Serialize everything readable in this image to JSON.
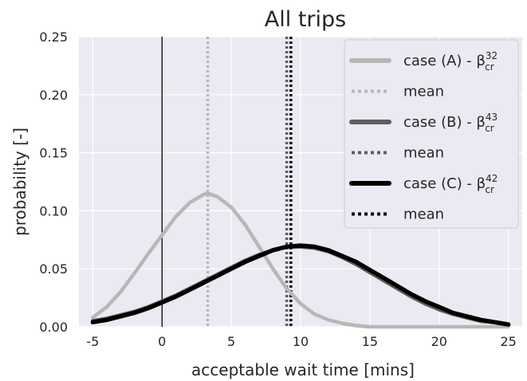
{
  "chart_data": {
    "type": "line",
    "title": "All trips",
    "xlabel": "acceptable wait time [mins]",
    "ylabel": "probability [-]",
    "xlim": [
      -6,
      26
    ],
    "ylim": [
      0,
      0.25
    ],
    "xticks": [
      "-5",
      "0",
      "5",
      "10",
      "15",
      "20",
      "25"
    ],
    "yticks": [
      "0.00",
      "0.05",
      "0.10",
      "0.15",
      "0.20",
      "0.25"
    ],
    "grid": true,
    "legend_position": "top-right",
    "reference_line_x": 0,
    "series": [
      {
        "name": "case (A) - β",
        "sup": "32",
        "sub": "cr",
        "color": "#b7b7b7",
        "mean": 3.3,
        "x": [
          -5,
          -4,
          -3,
          -2,
          -1,
          0,
          1,
          2,
          3,
          3.3,
          4,
          5,
          6,
          7,
          8,
          9,
          10,
          11,
          12,
          13,
          14,
          15,
          16,
          18,
          20,
          22,
          25
        ],
        "y": [
          0.008,
          0.017,
          0.03,
          0.046,
          0.063,
          0.079,
          0.095,
          0.107,
          0.114,
          0.115,
          0.112,
          0.103,
          0.088,
          0.069,
          0.05,
          0.033,
          0.02,
          0.011,
          0.006,
          0.003,
          0.001,
          0.0,
          0.0,
          0.0,
          0.0,
          0.0,
          0.0
        ]
      },
      {
        "name": "case (B) - β",
        "sup": "43",
        "sub": "cr",
        "color": "#5e5e5e",
        "mean": 9.0,
        "x": [
          -5,
          -4,
          -3,
          -2,
          -1,
          0,
          1,
          2,
          3,
          4,
          5,
          6,
          7,
          8,
          9,
          10,
          11,
          12,
          13,
          14,
          15,
          16,
          17,
          18,
          19,
          20,
          21,
          22,
          23,
          24,
          25
        ],
        "y": [
          0.005,
          0.007,
          0.01,
          0.013,
          0.017,
          0.022,
          0.027,
          0.033,
          0.039,
          0.045,
          0.051,
          0.057,
          0.062,
          0.066,
          0.069,
          0.069,
          0.068,
          0.065,
          0.06,
          0.054,
          0.047,
          0.04,
          0.033,
          0.026,
          0.02,
          0.015,
          0.011,
          0.008,
          0.005,
          0.004,
          0.002
        ]
      },
      {
        "name": "case (C) - β",
        "sup": "42",
        "sub": "cr",
        "color": "#000000",
        "mean": 9.3,
        "x": [
          -5,
          -4,
          -3,
          -2,
          -1,
          0,
          1,
          2,
          3,
          4,
          5,
          6,
          7,
          8,
          9,
          10,
          11,
          12,
          13,
          14,
          15,
          16,
          17,
          18,
          19,
          20,
          21,
          22,
          23,
          24,
          25
        ],
        "y": [
          0.004,
          0.006,
          0.009,
          0.012,
          0.016,
          0.021,
          0.026,
          0.032,
          0.038,
          0.044,
          0.05,
          0.056,
          0.061,
          0.066,
          0.069,
          0.07,
          0.069,
          0.066,
          0.061,
          0.056,
          0.049,
          0.042,
          0.035,
          0.028,
          0.022,
          0.017,
          0.012,
          0.009,
          0.006,
          0.004,
          0.002
        ]
      }
    ],
    "legend": [
      {
        "label": "case (A) - β",
        "sup": "32",
        "sub": "cr",
        "style": "solid",
        "color": "#b7b7b7"
      },
      {
        "label": "mean",
        "style": "dotted",
        "color": "#b7b7b7"
      },
      {
        "label": "case (B) - β",
        "sup": "43",
        "sub": "cr",
        "style": "solid",
        "color": "#5e5e5e"
      },
      {
        "label": "mean",
        "style": "dotted",
        "color": "#5e5e5e"
      },
      {
        "label": "case (C) - β",
        "sup": "42",
        "sub": "cr",
        "style": "solid",
        "color": "#000000"
      },
      {
        "label": "mean",
        "style": "dotted",
        "color": "#000000"
      }
    ]
  }
}
